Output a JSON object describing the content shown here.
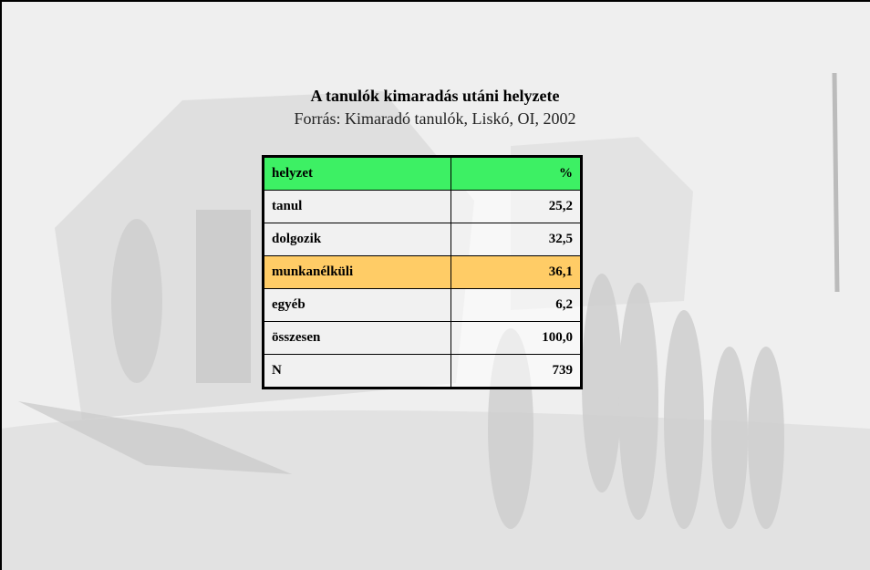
{
  "header": {
    "title": "A tanulók kimaradás utáni helyzete",
    "subtitle": "Forrás: Kimaradó tanulók, Liskó, OI, 2002"
  },
  "table": {
    "columns": [
      "helyzet",
      "%"
    ],
    "rows": [
      [
        "tanul",
        "25,2"
      ],
      [
        "dolgozik",
        "32,5"
      ],
      [
        "munkanélküli",
        "36,1"
      ],
      [
        "egyéb",
        "6,2"
      ],
      [
        "összesen",
        "100,0"
      ],
      [
        "N",
        "739"
      ]
    ]
  }
}
